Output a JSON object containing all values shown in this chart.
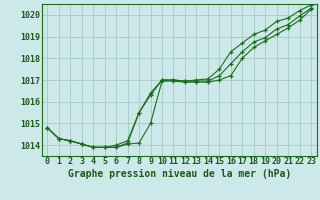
{
  "title": "Graphe pression niveau de la mer (hPa)",
  "background_color": "#cce8e8",
  "grid_color": "#aacccc",
  "line_color": "#1a6e1a",
  "hours": [
    0,
    1,
    2,
    3,
    4,
    5,
    6,
    7,
    8,
    9,
    10,
    11,
    12,
    13,
    14,
    15,
    16,
    17,
    18,
    19,
    20,
    21,
    22,
    23
  ],
  "line1": [
    1014.8,
    1014.3,
    1014.2,
    1014.05,
    1013.9,
    1013.9,
    1013.9,
    1014.1,
    1015.5,
    1016.3,
    1017.0,
    1017.0,
    1016.95,
    1016.95,
    1016.95,
    1017.2,
    1017.75,
    1018.3,
    1018.75,
    1018.95,
    1019.35,
    1019.55,
    1019.95,
    1020.3
  ],
  "line2": [
    1014.8,
    1014.3,
    1014.2,
    1014.05,
    1013.9,
    1013.9,
    1014.0,
    1014.2,
    1015.5,
    1016.4,
    1017.0,
    1017.0,
    1016.95,
    1017.0,
    1017.05,
    1017.5,
    1018.3,
    1018.7,
    1019.1,
    1019.3,
    1019.7,
    1019.85,
    1020.2,
    1020.45
  ],
  "line3": [
    1014.8,
    1014.3,
    1014.2,
    1014.05,
    1013.9,
    1013.9,
    1013.9,
    1014.05,
    1014.1,
    1015.0,
    1016.95,
    1016.95,
    1016.9,
    1016.9,
    1016.9,
    1017.0,
    1017.2,
    1018.0,
    1018.5,
    1018.8,
    1019.1,
    1019.4,
    1019.75,
    1020.25
  ],
  "ylim": [
    1013.5,
    1020.5
  ],
  "yticks": [
    1014,
    1015,
    1016,
    1017,
    1018,
    1019,
    1020
  ],
  "xlim": [
    -0.5,
    23.5
  ],
  "title_fontsize": 7,
  "tick_fontsize": 6
}
